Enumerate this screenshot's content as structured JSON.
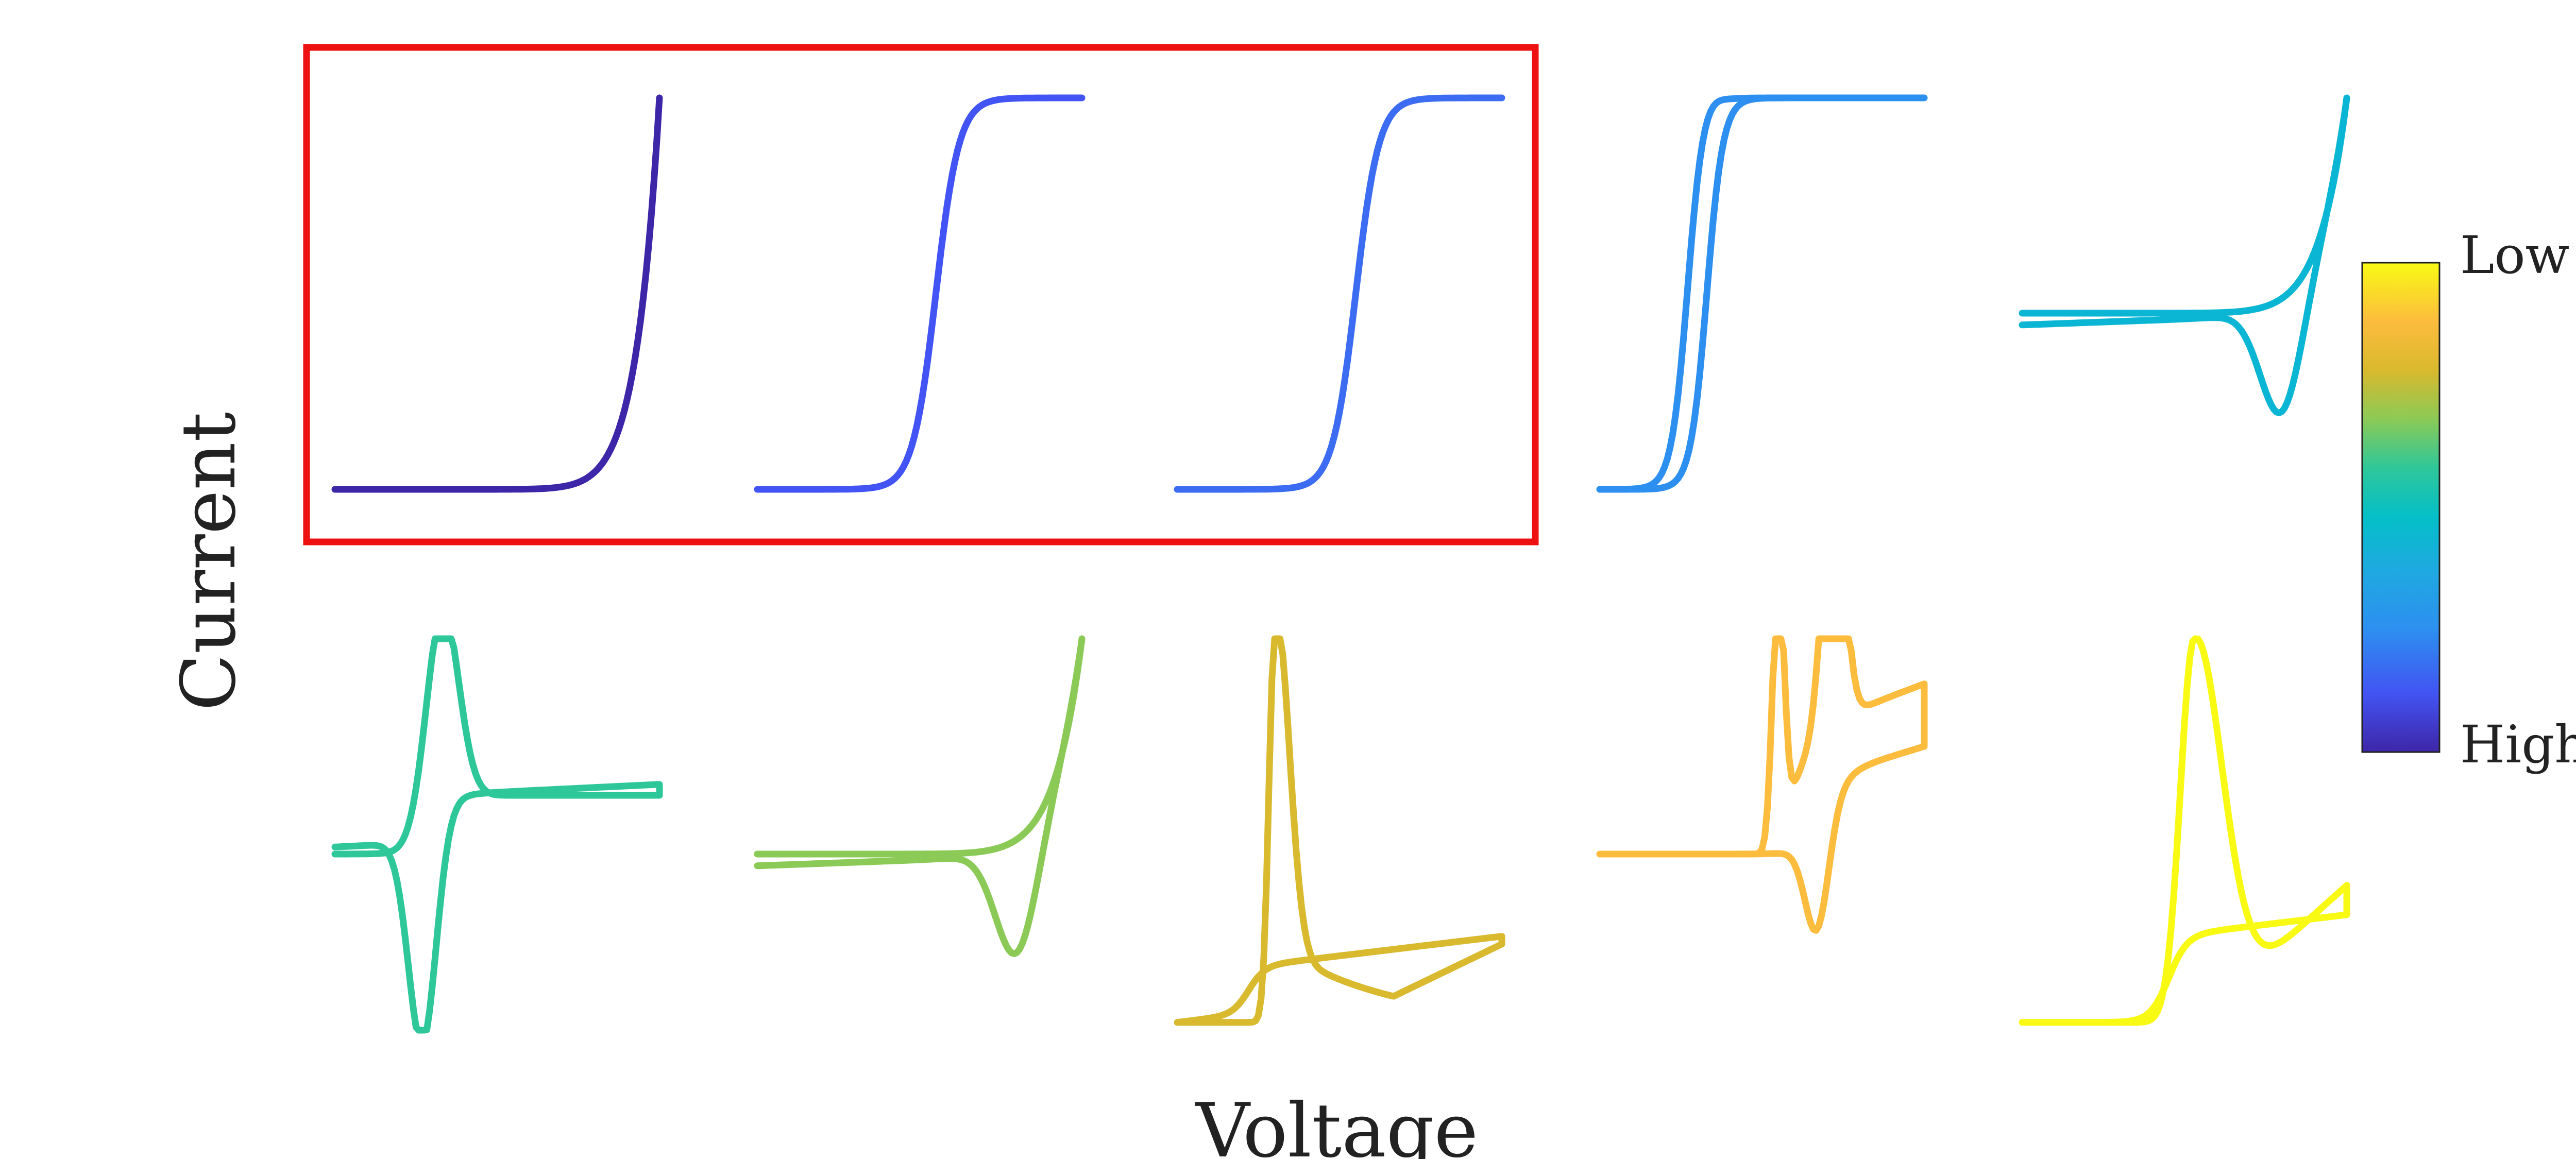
{
  "chart_data": {
    "type": "line",
    "xlabel": "Voltage",
    "ylabel": "Current",
    "colorbar": {
      "top_label": "Low",
      "bottom_label": "High",
      "colors_bottom_to_top": [
        "#3e26a8",
        "#4254f3",
        "#2d8ff0",
        "#1fa9e1",
        "#04bfc8",
        "#2ec79a",
        "#8bca56",
        "#d9b92d",
        "#fcbc3d",
        "#f9fa14"
      ]
    },
    "highlight": {
      "color": "#ee1111",
      "panels": [
        1,
        2,
        3
      ]
    },
    "panels": [
      {
        "index": 1,
        "color": "#3e26a8",
        "shape": "exp-rise"
      },
      {
        "index": 2,
        "color": "#4254f3",
        "shape": "sigmoid"
      },
      {
        "index": 3,
        "color": "#3b6cf2",
        "shape": "sigmoid"
      },
      {
        "index": 4,
        "color": "#2d8ff0",
        "shape": "sigmoid-loop"
      },
      {
        "index": 5,
        "color": "#0bb6d4",
        "shape": "rise-with-reverse-dip"
      },
      {
        "index": 6,
        "color": "#2ec79a",
        "shape": "reversible-cv"
      },
      {
        "index": 7,
        "color": "#8bca56",
        "shape": "rise-with-reverse-dip"
      },
      {
        "index": 8,
        "color": "#d9b92d",
        "shape": "sharp-peak-tail"
      },
      {
        "index": 9,
        "color": "#fcbc3d",
        "shape": "double-peak-cv"
      },
      {
        "index": 10,
        "color": "#f9fa14",
        "shape": "peak-tail"
      }
    ]
  }
}
